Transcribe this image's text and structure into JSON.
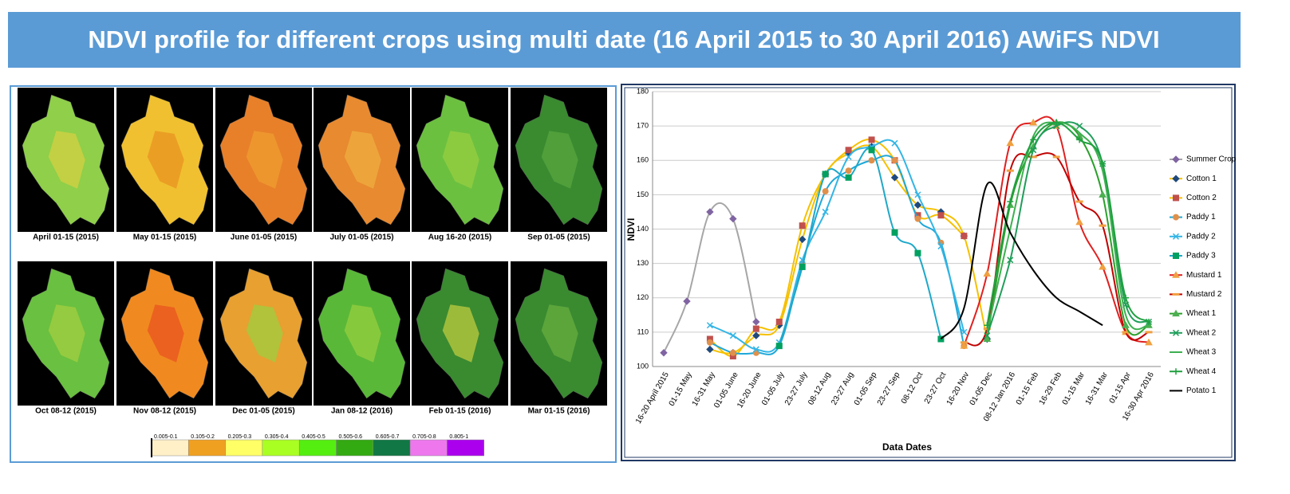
{
  "title": "NDVI profile for different crops using multi date (16 April 2015 to 30 April 2016) AWiFS NDVI",
  "maps": {
    "labels": [
      "April 01-15 (2015)",
      "May 01-15 (2015)",
      "June 01-05 (2015)",
      "July 01-05 (2015)",
      "Aug 16-20 (2015)",
      "Sep 01-05 (2015)",
      "Oct 08-12 (2015)",
      "Nov 08-12 (2015)",
      "Dec 01-05 (2015)",
      "Jan 08-12 (2016)",
      "Feb 01-15 (2016)",
      "Mar 01-15 (2016)"
    ],
    "colors": [
      [
        "#8fcf4a",
        "#d8d040"
      ],
      [
        "#f0c030",
        "#e89020"
      ],
      [
        "#e8802a",
        "#f0a030"
      ],
      [
        "#e88a30",
        "#f0b040"
      ],
      [
        "#6cc040",
        "#9ad040"
      ],
      [
        "#3a8a30",
        "#5aa840"
      ],
      [
        "#6ac040",
        "#a8d040"
      ],
      [
        "#f08a20",
        "#e85020"
      ],
      [
        "#e8a030",
        "#9ad040"
      ],
      [
        "#5ab838",
        "#9ad040"
      ],
      [
        "#3a8a30",
        "#c8d040"
      ],
      [
        "#3a8a30",
        "#6ab040"
      ]
    ]
  },
  "map_legend": {
    "labels": [
      "0.005-0.1",
      "0.105-0.2",
      "0.205-0.3",
      "0.305-0.4",
      "0.405-0.5",
      "0.505-0.6",
      "0.605-0.7",
      "0.705-0.8",
      "0.805-1"
    ],
    "colors": [
      "#fff0c8",
      "#f0a020",
      "#ffff66",
      "#aaff22",
      "#55ee11",
      "#33aa11",
      "#117744",
      "#ee77ee",
      "#aa00ee"
    ]
  },
  "chart_data": {
    "type": "line",
    "x_label": "Data Dates",
    "y_label": "NDVI",
    "categories": [
      "16-20 April 2015",
      "01-15 May",
      "16-31 May",
      "01-05 June",
      "16-20 June",
      "01-05 July",
      "23-27 July",
      "08-12 Aug",
      "23-27 Aug",
      "01-05 Sep",
      "23-27 Sep",
      "08-12 Oct",
      "23-27 Oct",
      "16-20 Nov",
      "01-05 Dec",
      "08-12 Jan 2016",
      "01-15 Feb",
      "16-29 Feb",
      "01-15 Mar",
      "16-31 Mar",
      "01-15 Apr",
      "16-30 Apr 2016"
    ],
    "ylim": [
      100,
      180
    ],
    "yticks": [
      100,
      110,
      120,
      130,
      140,
      150,
      160,
      170,
      180
    ],
    "grid": true,
    "series": [
      {
        "name": "Summer Crop",
        "color": "#a6a6a6",
        "marker": "diamond",
        "marker_color": "#8064a2",
        "values": [
          104,
          119,
          145,
          143,
          113,
          null,
          null,
          null,
          null,
          null,
          null,
          null,
          null,
          null,
          null,
          null,
          null,
          null,
          null,
          null,
          null,
          null
        ]
      },
      {
        "name": "Cotton 1",
        "color": "#f5c000",
        "marker": "diamond",
        "marker_color": "#1f497d",
        "values": [
          null,
          null,
          105,
          104,
          109,
          112,
          137,
          156,
          162,
          164,
          155,
          147,
          145,
          138,
          108,
          null,
          null,
          null,
          null,
          null,
          null,
          null
        ]
      },
      {
        "name": "Cotton 2",
        "color": "#f5c000",
        "marker": "square",
        "marker_color": "#c0504d",
        "values": [
          null,
          null,
          108,
          103,
          111,
          113,
          141,
          156,
          163,
          166,
          160,
          144,
          144,
          138,
          null,
          null,
          null,
          null,
          null,
          null,
          null,
          null
        ]
      },
      {
        "name": "Paddy 1",
        "color": "#1fa8d8",
        "marker": "circle",
        "marker_color": "#e0904a",
        "values": [
          null,
          null,
          107,
          104,
          104,
          106,
          130,
          151,
          157,
          160,
          160,
          143,
          136,
          106,
          null,
          null,
          null,
          null,
          null,
          null,
          null,
          null
        ]
      },
      {
        "name": "Paddy 2",
        "color": "#33b5e5",
        "marker": "cross",
        "marker_color": "#33b5e5",
        "values": [
          null,
          null,
          112,
          109,
          105,
          107,
          131,
          145,
          161,
          164,
          165,
          150,
          135,
          110,
          null,
          null,
          null,
          null,
          null,
          null,
          null,
          null
        ]
      },
      {
        "name": "Paddy 3",
        "color": "#1fa8c8",
        "marker": "square",
        "marker_color": "#00a060",
        "values": [
          null,
          null,
          null,
          null,
          null,
          106,
          129,
          156,
          155,
          163,
          139,
          133,
          108,
          null,
          null,
          null,
          null,
          null,
          null,
          null,
          null,
          null
        ]
      },
      {
        "name": "Mustard 1",
        "color": "#e02020",
        "marker": "triangle",
        "marker_color": "#f0a040",
        "values": [
          null,
          null,
          null,
          null,
          null,
          null,
          null,
          null,
          null,
          null,
          null,
          null,
          null,
          106,
          127,
          165,
          171,
          170,
          142,
          129,
          110,
          107
        ]
      },
      {
        "name": "Mustard 2",
        "color": "#c00000",
        "marker": "dash",
        "marker_color": "#f0a040",
        "values": [
          null,
          null,
          null,
          null,
          null,
          null,
          null,
          null,
          null,
          null,
          null,
          null,
          null,
          107,
          111,
          157,
          161,
          161,
          148,
          141,
          110,
          110
        ]
      },
      {
        "name": "Wheat 1",
        "color": "#2ca02c",
        "marker": "triangle",
        "marker_color": "#4caf50",
        "values": [
          null,
          null,
          null,
          null,
          null,
          null,
          null,
          null,
          null,
          null,
          null,
          null,
          null,
          null,
          108,
          147,
          164,
          171,
          167,
          150,
          112,
          112
        ]
      },
      {
        "name": "Wheat 2",
        "color": "#1f9e5a",
        "marker": "cross",
        "marker_color": "#1f9e5a",
        "values": [
          null,
          null,
          null,
          null,
          null,
          null,
          null,
          null,
          null,
          null,
          null,
          null,
          null,
          null,
          109,
          131,
          163,
          170,
          170,
          159,
          118,
          113
        ]
      },
      {
        "name": "Wheat 3",
        "color": "#3cb050",
        "marker": "none",
        "marker_color": "#3cb050",
        "values": [
          null,
          null,
          null,
          null,
          null,
          null,
          null,
          null,
          null,
          null,
          null,
          null,
          null,
          null,
          110,
          140,
          167,
          171,
          168,
          157,
          115,
          112
        ]
      },
      {
        "name": "Wheat 4",
        "color": "#20a040",
        "marker": "plus",
        "marker_color": "#20a040",
        "values": [
          null,
          null,
          null,
          null,
          null,
          null,
          null,
          null,
          null,
          null,
          null,
          null,
          null,
          null,
          112,
          148,
          166,
          171,
          166,
          159,
          120,
          113
        ]
      },
      {
        "name": "Potato 1",
        "color": "#000000",
        "marker": "none",
        "marker_color": "#000000",
        "values": [
          null,
          null,
          null,
          null,
          null,
          null,
          null,
          null,
          null,
          null,
          null,
          null,
          108,
          117,
          153,
          139,
          128,
          120,
          116,
          112,
          null,
          null
        ]
      }
    ]
  }
}
